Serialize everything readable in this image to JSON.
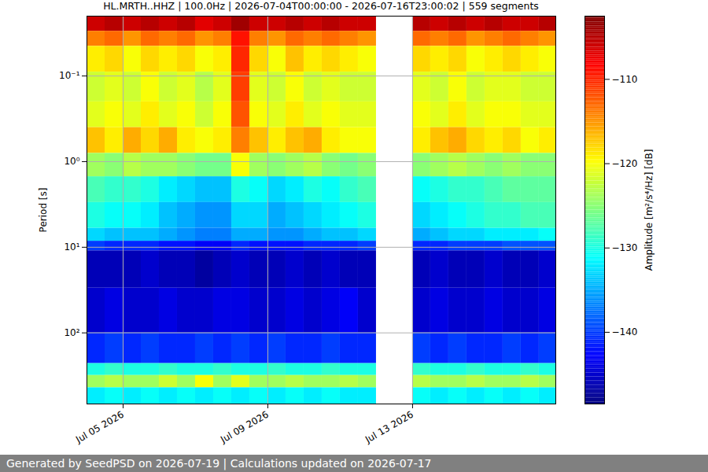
{
  "chart_data": {
    "type": "heatmap",
    "title": "HL.MRTH..HHZ | 100.0Hz | 2026-07-04T00:00:00 - 2026-07-16T23:00:02 | 559 segments",
    "caption": "Generated by SeedPSD on 2026-07-19 | Calculations updated on 2026-07-17",
    "y_label": "Period [s]",
    "log": "y",
    "grid": true,
    "xlim": [
      "2026-07-04T00:00",
      "2026-07-16T23:00"
    ],
    "xticks": [
      {
        "value": "2026-07-05T00:00",
        "label": "Jul 05 2026"
      },
      {
        "value": "2026-07-09T00:00",
        "label": "Jul 09 2026"
      },
      {
        "value": "2026-07-13T00:00",
        "label": "Jul 13 2026"
      }
    ],
    "ylim": [
      676,
      0.02
    ],
    "yticks": [
      {
        "value": 0.1,
        "label": "10⁻¹"
      },
      {
        "value": 1,
        "label": "10⁰"
      },
      {
        "value": 10,
        "label": "10¹"
      },
      {
        "value": 100,
        "label": "10²"
      }
    ],
    "time_edges": [
      "2026-07-04T00:00",
      "2026-07-04T12:00",
      "2026-07-05T00:00",
      "2026-07-05T12:00",
      "2026-07-06T00:00",
      "2026-07-06T12:00",
      "2026-07-07T00:00",
      "2026-07-07T12:00",
      "2026-07-08T00:00",
      "2026-07-08T12:00",
      "2026-07-09T00:00",
      "2026-07-09T12:00",
      "2026-07-10T00:00",
      "2026-07-10T12:00",
      "2026-07-11T00:00",
      "2026-07-11T12:00",
      "2026-07-12T00:00",
      "2026-07-12T12:00",
      "2026-07-13T00:00",
      "2026-07-13T12:00",
      "2026-07-14T00:00",
      "2026-07-14T12:00",
      "2026-07-15T00:00",
      "2026-07-15T12:00",
      "2026-07-16T00:00",
      "2026-07-16T12:00",
      "2026-07-17T00:00"
    ],
    "period_edges": [
      0.02,
      0.03,
      0.045,
      0.09,
      0.2,
      0.4,
      0.8,
      1.5,
      3,
      6,
      8.5,
      11,
      30,
      100,
      228,
      314,
      437,
      676
    ],
    "cells": [
      [
        -106,
        -105,
        -106,
        -105,
        -106,
        -105,
        -107,
        -106,
        -104,
        -106,
        -106,
        -105,
        -106,
        -105,
        -106,
        -106,
        null,
        null,
        -105,
        -106,
        -105,
        -106,
        -105,
        -106,
        -106,
        -105
      ],
      [
        -114,
        -113,
        -115,
        -113,
        -114,
        -113,
        -115,
        -114,
        -109,
        -114,
        -115,
        -113,
        -114,
        -113,
        -114,
        -115,
        null,
        null,
        -113,
        -114,
        -113,
        -115,
        -114,
        -113,
        -114,
        -115
      ],
      [
        -119,
        -118,
        -120,
        -118,
        -119,
        -118,
        -120,
        -119,
        -110,
        -118,
        -120,
        -117,
        -119,
        -118,
        -119,
        -120,
        null,
        null,
        -118,
        -119,
        -118,
        -120,
        -119,
        -118,
        -119,
        -120
      ],
      [
        -122,
        -121,
        -122,
        -120,
        -122,
        -121,
        -123,
        -121,
        -111,
        -121,
        -122,
        -120,
        -122,
        -121,
        -122,
        -122,
        null,
        null,
        -121,
        -122,
        -120,
        -122,
        -121,
        -121,
        -122,
        -122
      ],
      [
        -121,
        -120,
        -121,
        -119,
        -121,
        -120,
        -122,
        -120,
        -112,
        -120,
        -121,
        -119,
        -121,
        -120,
        -121,
        -121,
        null,
        null,
        -120,
        -121,
        -119,
        -121,
        -120,
        -120,
        -121,
        -121
      ],
      [
        -117,
        -119,
        -116,
        -118,
        -116,
        -119,
        -120,
        -119,
        -114,
        -117,
        -119,
        -117,
        -116,
        -119,
        -120,
        -120,
        null,
        null,
        -119,
        -117,
        -116,
        -118,
        -119,
        -118,
        -120,
        -119
      ],
      [
        -124,
        -125,
        -123,
        -124,
        -124,
        -125,
        -126,
        -126,
        -120,
        -124,
        -125,
        -124,
        -123,
        -125,
        -126,
        -125,
        null,
        null,
        -125,
        -124,
        -123,
        -124,
        -125,
        -124,
        -125,
        -125
      ],
      [
        -128,
        -129,
        -129,
        -130,
        -132,
        -133,
        -134,
        -134,
        -130,
        -131,
        -133,
        -132,
        -130,
        -131,
        -129,
        -128,
        null,
        null,
        -131,
        -130,
        -129,
        -129,
        -128,
        -127,
        -127,
        -127
      ],
      [
        -130,
        -131,
        -131,
        -132,
        -134,
        -135,
        -136,
        -136,
        -133,
        -133,
        -135,
        -134,
        -133,
        -132,
        -131,
        -130,
        null,
        null,
        -133,
        -132,
        -131,
        -130,
        -129,
        -129,
        -128,
        -128
      ],
      [
        -133,
        -134,
        -134,
        -134,
        -135,
        -136,
        -137,
        -137,
        -135,
        -135,
        -136,
        -136,
        -135,
        -134,
        -134,
        -133,
        null,
        null,
        -135,
        -134,
        -133,
        -133,
        -132,
        -132,
        -132,
        -131
      ],
      [
        -140,
        -141,
        -141,
        -141,
        -142,
        -142,
        -143,
        -143,
        -141,
        -142,
        -142,
        -142,
        -141,
        -141,
        -141,
        -140,
        null,
        null,
        -141,
        -141,
        -140,
        -140,
        -140,
        -139,
        -139,
        -139
      ],
      [
        -146,
        -146,
        -146,
        -145,
        -146,
        -146,
        -147,
        -146,
        -145,
        -146,
        -146,
        -145,
        -146,
        -145,
        -146,
        -146,
        null,
        null,
        -146,
        -145,
        -146,
        -146,
        -145,
        -146,
        -146,
        -145
      ],
      [
        -145,
        -144,
        -145,
        -145,
        -144,
        -145,
        -145,
        -144,
        -144,
        -145,
        -145,
        -144,
        -145,
        -144,
        -143,
        -145,
        null,
        null,
        -145,
        -144,
        -145,
        -145,
        -144,
        -145,
        -145,
        -144
      ],
      [
        -141,
        -140,
        -141,
        -140,
        -141,
        -141,
        -140,
        -141,
        -140,
        -141,
        -140,
        -141,
        -141,
        -140,
        -141,
        -141,
        null,
        null,
        -140,
        -141,
        -140,
        -141,
        -141,
        -140,
        -141,
        -140
      ],
      [
        -130,
        -129,
        -130,
        -130,
        -129,
        -130,
        -130,
        -129,
        -130,
        -130,
        -129,
        -130,
        -130,
        -129,
        -130,
        -130,
        null,
        null,
        -129,
        -130,
        -130,
        -129,
        -130,
        -130,
        -129,
        -130
      ],
      [
        -124,
        -123,
        -124,
        -124,
        -122,
        -124,
        -120,
        -124,
        -121,
        -124,
        -124,
        -123,
        -124,
        -124,
        -123,
        -124,
        null,
        null,
        -123,
        -124,
        -124,
        -123,
        -124,
        -124,
        -123,
        -124
      ],
      [
        -132,
        -131,
        -132,
        -131,
        -132,
        -131,
        -132,
        -131,
        -132,
        -131,
        -132,
        -131,
        -132,
        -131,
        -132,
        -132,
        null,
        null,
        -131,
        -132,
        -131,
        -132,
        -131,
        -132,
        -131,
        -132
      ]
    ],
    "colorbar": {
      "range": [
        -148.5,
        -102.5
      ],
      "ticks": [
        -140,
        -130,
        -120,
        -110
      ],
      "label": "Amplitude [m²/s⁴/Hz] [dB]"
    }
  }
}
